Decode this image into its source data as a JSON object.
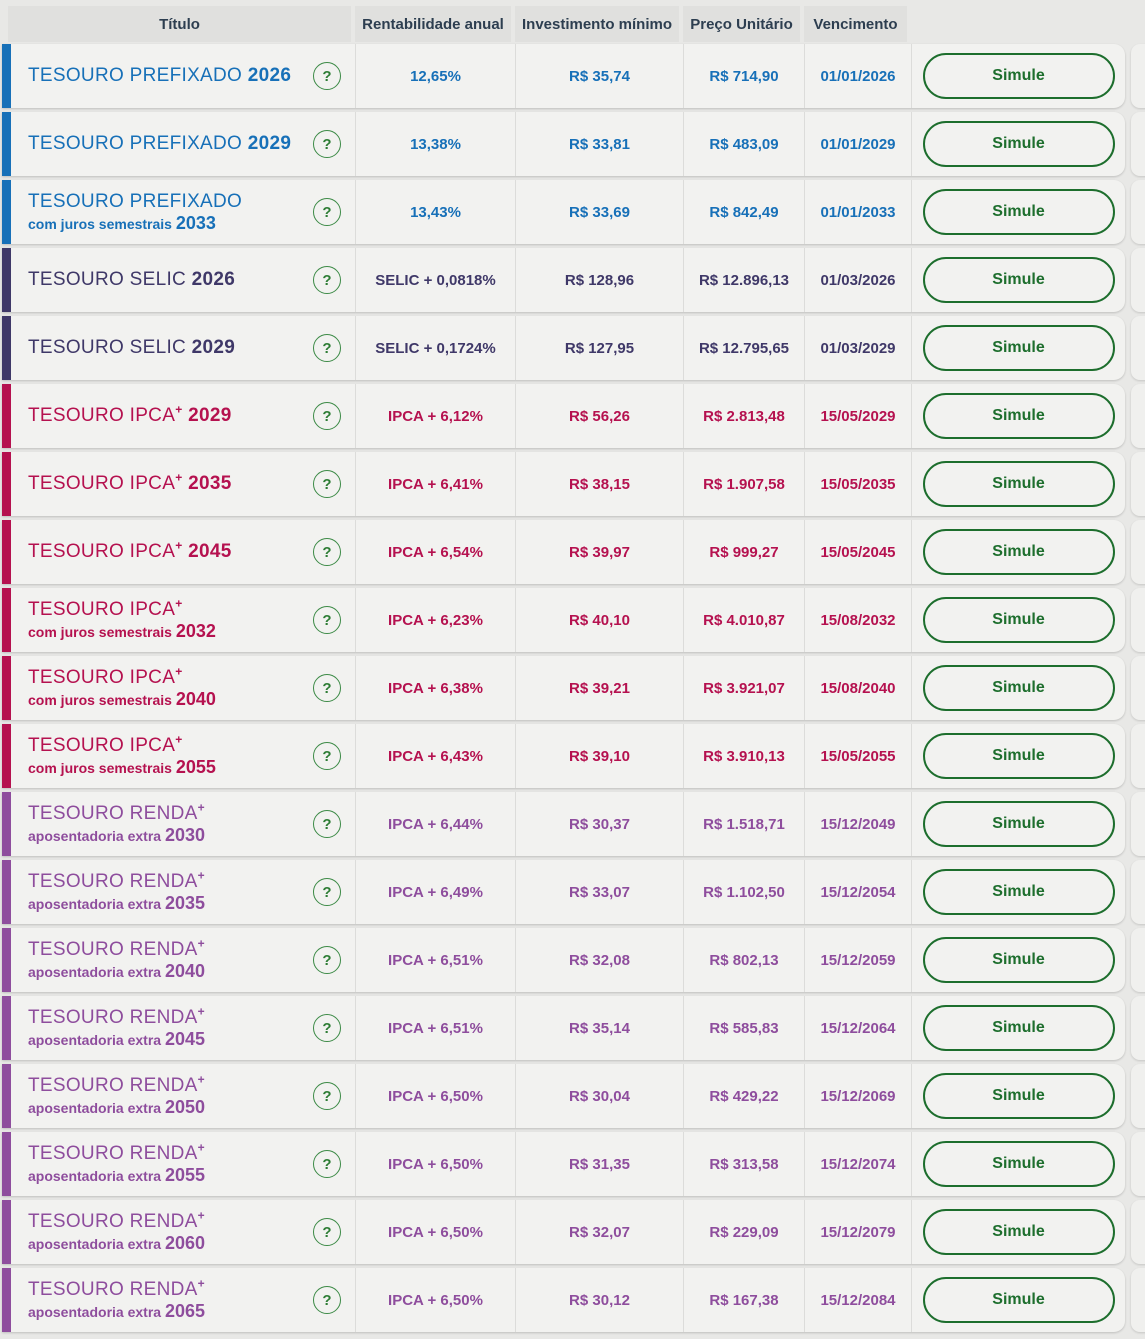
{
  "colors": {
    "prefixado": "#1770b8",
    "selic": "#3f3868",
    "ipca": "#b5114f",
    "renda": "#8e4d9d",
    "action_green": "#1d6e2d",
    "header_text": "#2d3e50"
  },
  "table": {
    "headers": [
      "Título",
      "Rentabilidade anual",
      "Investimento mínimo",
      "Preço Unitário",
      "Vencimento"
    ],
    "help_label": "?",
    "simulate_label": "Simule",
    "rows": [
      {
        "type": "prefixado",
        "name": "TESOURO PREFIXADO",
        "sup": "",
        "year_inline": "2026",
        "subtitle": "",
        "year2": "",
        "rate": "12,65%",
        "min_investment": "R$ 35,74",
        "unit_price": "R$ 714,90",
        "maturity": "01/01/2026"
      },
      {
        "type": "prefixado",
        "name": "TESOURO PREFIXADO",
        "sup": "",
        "year_inline": "2029",
        "subtitle": "",
        "year2": "",
        "rate": "13,38%",
        "min_investment": "R$ 33,81",
        "unit_price": "R$ 483,09",
        "maturity": "01/01/2029"
      },
      {
        "type": "prefixado",
        "name": "TESOURO PREFIXADO",
        "sup": "",
        "year_inline": "",
        "subtitle": "com juros semestrais",
        "year2": "2033",
        "rate": "13,43%",
        "min_investment": "R$ 33,69",
        "unit_price": "R$ 842,49",
        "maturity": "01/01/2033"
      },
      {
        "type": "selic",
        "name": "TESOURO SELIC",
        "sup": "",
        "year_inline": "2026",
        "subtitle": "",
        "year2": "",
        "rate": "SELIC + 0,0818%",
        "min_investment": "R$ 128,96",
        "unit_price": "R$ 12.896,13",
        "maturity": "01/03/2026"
      },
      {
        "type": "selic",
        "name": "TESOURO SELIC",
        "sup": "",
        "year_inline": "2029",
        "subtitle": "",
        "year2": "",
        "rate": "SELIC + 0,1724%",
        "min_investment": "R$ 127,95",
        "unit_price": "R$ 12.795,65",
        "maturity": "01/03/2029"
      },
      {
        "type": "ipca",
        "name": "TESOURO IPCA",
        "sup": "+",
        "year_inline": "2029",
        "subtitle": "",
        "year2": "",
        "rate": "IPCA + 6,12%",
        "min_investment": "R$ 56,26",
        "unit_price": "R$ 2.813,48",
        "maturity": "15/05/2029"
      },
      {
        "type": "ipca",
        "name": "TESOURO IPCA",
        "sup": "+",
        "year_inline": "2035",
        "subtitle": "",
        "year2": "",
        "rate": "IPCA + 6,41%",
        "min_investment": "R$ 38,15",
        "unit_price": "R$ 1.907,58",
        "maturity": "15/05/2035"
      },
      {
        "type": "ipca",
        "name": "TESOURO IPCA",
        "sup": "+",
        "year_inline": "2045",
        "subtitle": "",
        "year2": "",
        "rate": "IPCA + 6,54%",
        "min_investment": "R$ 39,97",
        "unit_price": "R$ 999,27",
        "maturity": "15/05/2045"
      },
      {
        "type": "ipca",
        "name": "TESOURO IPCA",
        "sup": "+",
        "year_inline": "",
        "subtitle": "com juros semestrais",
        "year2": "2032",
        "rate": "IPCA + 6,23%",
        "min_investment": "R$ 40,10",
        "unit_price": "R$ 4.010,87",
        "maturity": "15/08/2032"
      },
      {
        "type": "ipca",
        "name": "TESOURO IPCA",
        "sup": "+",
        "year_inline": "",
        "subtitle": "com juros semestrais",
        "year2": "2040",
        "rate": "IPCA + 6,38%",
        "min_investment": "R$ 39,21",
        "unit_price": "R$ 3.921,07",
        "maturity": "15/08/2040"
      },
      {
        "type": "ipca",
        "name": "TESOURO IPCA",
        "sup": "+",
        "year_inline": "",
        "subtitle": "com juros semestrais",
        "year2": "2055",
        "rate": "IPCA + 6,43%",
        "min_investment": "R$ 39,10",
        "unit_price": "R$ 3.910,13",
        "maturity": "15/05/2055"
      },
      {
        "type": "renda",
        "name": "TESOURO RENDA",
        "sup": "+",
        "year_inline": "",
        "subtitle": "aposentadoria extra",
        "year2": "2030",
        "rate": "IPCA + 6,44%",
        "min_investment": "R$ 30,37",
        "unit_price": "R$ 1.518,71",
        "maturity": "15/12/2049"
      },
      {
        "type": "renda",
        "name": "TESOURO RENDA",
        "sup": "+",
        "year_inline": "",
        "subtitle": "aposentadoria extra",
        "year2": "2035",
        "rate": "IPCA + 6,49%",
        "min_investment": "R$ 33,07",
        "unit_price": "R$ 1.102,50",
        "maturity": "15/12/2054"
      },
      {
        "type": "renda",
        "name": "TESOURO RENDA",
        "sup": "+",
        "year_inline": "",
        "subtitle": "aposentadoria extra",
        "year2": "2040",
        "rate": "IPCA + 6,51%",
        "min_investment": "R$ 32,08",
        "unit_price": "R$ 802,13",
        "maturity": "15/12/2059"
      },
      {
        "type": "renda",
        "name": "TESOURO RENDA",
        "sup": "+",
        "year_inline": "",
        "subtitle": "aposentadoria extra",
        "year2": "2045",
        "rate": "IPCA + 6,51%",
        "min_investment": "R$ 35,14",
        "unit_price": "R$ 585,83",
        "maturity": "15/12/2064"
      },
      {
        "type": "renda",
        "name": "TESOURO RENDA",
        "sup": "+",
        "year_inline": "",
        "subtitle": "aposentadoria extra",
        "year2": "2050",
        "rate": "IPCA + 6,50%",
        "min_investment": "R$ 30,04",
        "unit_price": "R$ 429,22",
        "maturity": "15/12/2069"
      },
      {
        "type": "renda",
        "name": "TESOURO RENDA",
        "sup": "+",
        "year_inline": "",
        "subtitle": "aposentadoria extra",
        "year2": "2055",
        "rate": "IPCA + 6,50%",
        "min_investment": "R$ 31,35",
        "unit_price": "R$ 313,58",
        "maturity": "15/12/2074"
      },
      {
        "type": "renda",
        "name": "TESOURO RENDA",
        "sup": "+",
        "year_inline": "",
        "subtitle": "aposentadoria extra",
        "year2": "2060",
        "rate": "IPCA + 6,50%",
        "min_investment": "R$ 32,07",
        "unit_price": "R$ 229,09",
        "maturity": "15/12/2079"
      },
      {
        "type": "renda",
        "name": "TESOURO RENDA",
        "sup": "+",
        "year_inline": "",
        "subtitle": "aposentadoria extra",
        "year2": "2065",
        "rate": "IPCA + 6,50%",
        "min_investment": "R$ 30,12",
        "unit_price": "R$ 167,38",
        "maturity": "15/12/2084"
      }
    ]
  }
}
